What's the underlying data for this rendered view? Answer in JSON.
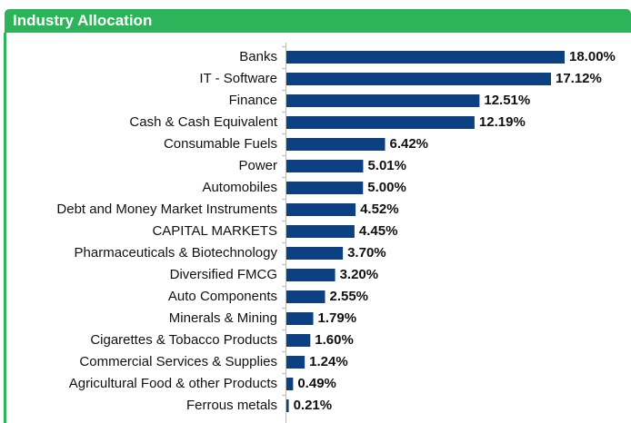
{
  "chart_data": {
    "type": "bar",
    "orientation": "horizontal",
    "title": "Industry Allocation",
    "categories": [
      "Banks",
      "IT - Software",
      "Finance",
      "Cash & Cash Equivalent",
      "Consumable Fuels",
      "Power",
      "Automobiles",
      "Debt and Money Market Instruments",
      "CAPITAL MARKETS",
      "Pharmaceuticals & Biotechnology",
      "Diversified FMCG",
      "Auto Components",
      "Minerals & Mining",
      "Cigarettes & Tobacco Products",
      "Commercial Services & Supplies",
      "Agricultural Food & other Products",
      "Ferrous metals"
    ],
    "values": [
      18.0,
      17.12,
      12.51,
      12.19,
      6.42,
      5.01,
      5.0,
      4.52,
      4.45,
      3.7,
      3.2,
      2.55,
      1.79,
      1.6,
      1.24,
      0.49,
      0.21
    ],
    "value_labels": [
      "18.00%",
      "17.12%",
      "12.51%",
      "12.19%",
      "6.42%",
      "5.01%",
      "5.00%",
      "4.52%",
      "4.45%",
      "3.70%",
      "3.20%",
      "2.55%",
      "1.79%",
      "1.60%",
      "1.24%",
      "0.49%",
      "0.21%"
    ],
    "color": "#0d4080"
  }
}
